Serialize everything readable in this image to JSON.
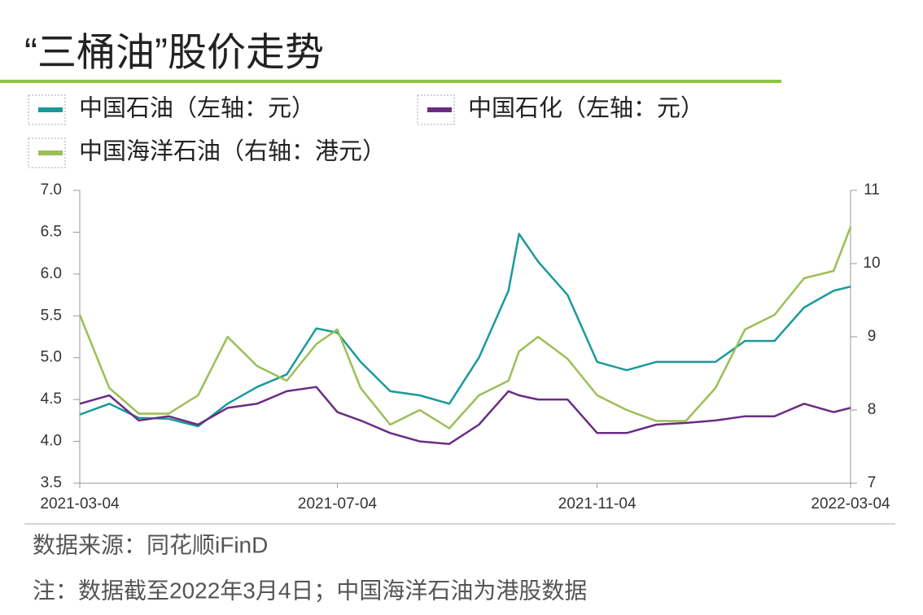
{
  "chart_data": {
    "type": "line",
    "title": "“三桶油”股价走势",
    "x": [
      "2021-03-04",
      "2021-03-18",
      "2021-04-01",
      "2021-04-15",
      "2021-04-29",
      "2021-05-13",
      "2021-05-27",
      "2021-06-10",
      "2021-06-24",
      "2021-07-04",
      "2021-07-15",
      "2021-07-29",
      "2021-08-12",
      "2021-08-26",
      "2021-09-09",
      "2021-09-23",
      "2021-09-28",
      "2021-10-07",
      "2021-10-21",
      "2021-11-04",
      "2021-11-18",
      "2021-12-02",
      "2021-12-16",
      "2021-12-30",
      "2022-01-13",
      "2022-01-27",
      "2022-02-10",
      "2022-02-24",
      "2022-03-04"
    ],
    "series": [
      {
        "name": "中国石油（左轴：元）",
        "color": "#1a9a9a",
        "values": [
          4.32,
          4.45,
          4.28,
          4.27,
          4.18,
          4.45,
          4.65,
          4.8,
          5.35,
          5.3,
          4.95,
          4.6,
          4.55,
          4.45,
          5.0,
          5.8,
          6.48,
          6.15,
          5.75,
          4.95,
          4.85,
          4.95,
          4.95,
          4.95,
          5.2,
          5.2,
          5.6,
          5.8,
          5.85
        ]
      },
      {
        "name": "中国石化（左轴：元）",
        "color": "#6b2d83",
        "values": [
          4.45,
          4.55,
          4.25,
          4.3,
          4.2,
          4.4,
          4.45,
          4.6,
          4.65,
          4.35,
          4.25,
          4.1,
          4.0,
          3.97,
          4.2,
          4.6,
          4.55,
          4.5,
          4.5,
          4.1,
          4.1,
          4.2,
          4.22,
          4.25,
          4.3,
          4.3,
          4.45,
          4.35,
          4.4
        ]
      },
      {
        "name": "中国海洋石油（右轴：港元）",
        "color": "#9bbf55",
        "axis": "y2",
        "values": [
          9.3,
          8.3,
          7.95,
          7.95,
          8.2,
          9.0,
          8.6,
          8.4,
          8.9,
          9.1,
          8.3,
          7.8,
          8.0,
          7.75,
          8.2,
          8.4,
          8.8,
          9.0,
          8.7,
          8.2,
          8.0,
          7.85,
          7.85,
          8.3,
          9.1,
          9.3,
          9.8,
          9.9,
          10.5
        ]
      }
    ],
    "xlim": [
      "2021-03-04",
      "2022-03-04"
    ],
    "xticks": [
      "2021-03-04",
      "2021-07-04",
      "2021-11-04",
      "2022-03-04"
    ],
    "ylim": [
      3.5,
      7
    ],
    "yticks": [
      3.5,
      {
        "value": 4,
        "label": "4.0"
      },
      4.5,
      {
        "value": 5,
        "label": "5.0"
      },
      5.5,
      {
        "value": 6,
        "label": "6.0"
      },
      6.5,
      {
        "value": 7,
        "label": "7.0"
      }
    ],
    "y2lim": [
      7,
      11
    ],
    "y2ticks": [
      7,
      8,
      9,
      10,
      11
    ],
    "source": "数据来源：同花顺iFinD",
    "note": "注：数据截至2022年3月4日；中国海洋石油为港股数据"
  }
}
